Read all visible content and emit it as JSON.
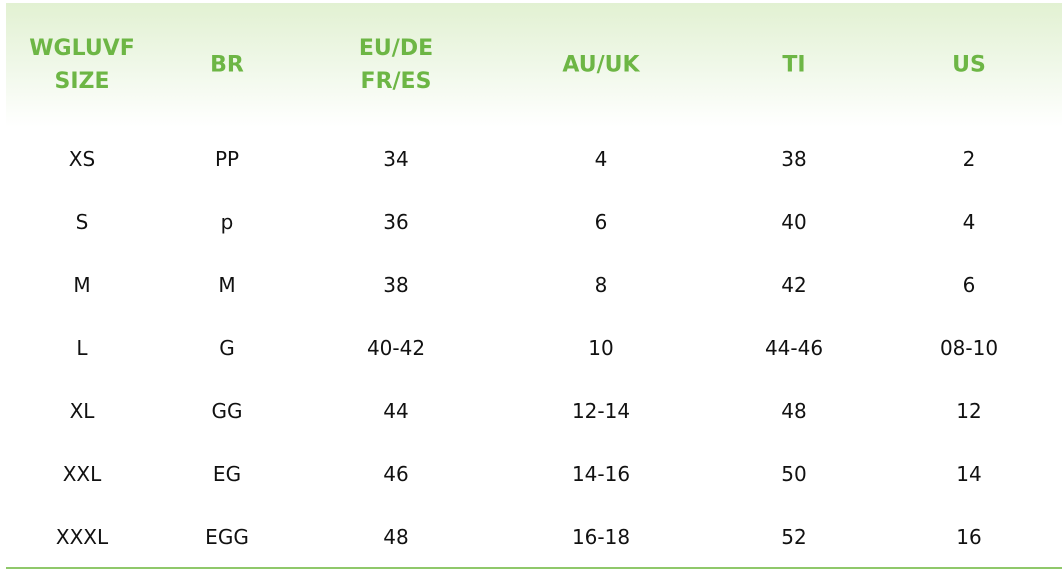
{
  "table": {
    "headers": [
      [
        "WGLUVF",
        "SIZE"
      ],
      [
        "BR"
      ],
      [
        "EU/DE",
        "FR/ES"
      ],
      [
        "AU/UK"
      ],
      [
        "TI"
      ],
      [
        "US"
      ]
    ],
    "rows": [
      [
        "XS",
        "PP",
        "34",
        "4",
        "38",
        "2"
      ],
      [
        "S",
        "p",
        "36",
        "6",
        "40",
        "4"
      ],
      [
        "M",
        "M",
        "38",
        "8",
        "42",
        "6"
      ],
      [
        "L",
        "G",
        "40-42",
        "10",
        "44-46",
        "08-10"
      ],
      [
        "XL",
        "GG",
        "44",
        "12-14",
        "48",
        "12"
      ],
      [
        "XXL",
        "EG",
        "46",
        "14-16",
        "50",
        "14"
      ],
      [
        "XXXL",
        "EGG",
        "48",
        "16-18",
        "52",
        "16"
      ]
    ]
  },
  "colors": {
    "header_text": "#6db645",
    "header_bg": "#e2f1d2",
    "accent_line": "#8fc86a"
  }
}
